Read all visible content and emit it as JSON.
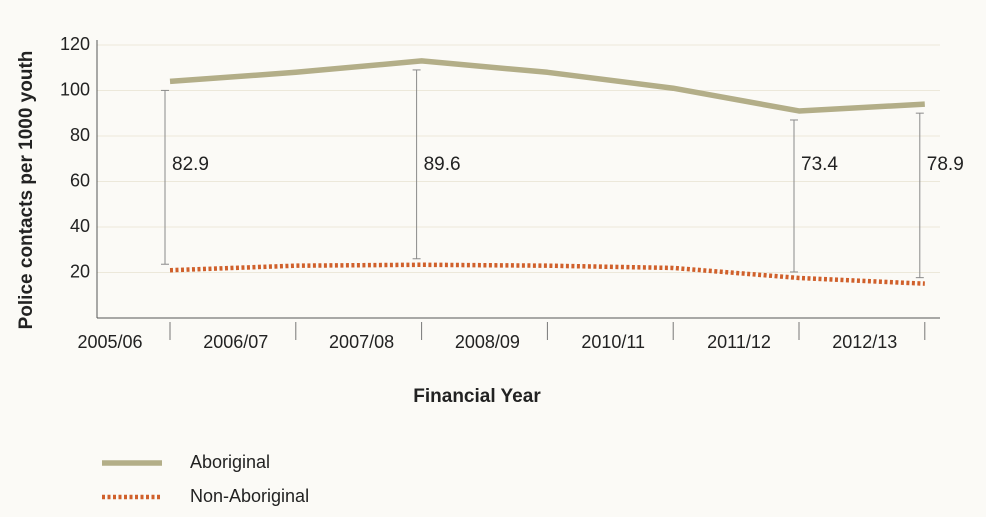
{
  "chart_data": {
    "type": "line",
    "x_label": "Financial Year",
    "y_label": "Police contacts per 1000 youth",
    "categories": [
      "2005/06",
      "2006/07",
      "2007/08",
      "2008/09",
      "2010/11",
      "2011/12",
      "2012/13"
    ],
    "series": [
      {
        "name": "Aboriginal",
        "color": "#b3ae88",
        "style": "solid",
        "values": [
          104,
          108,
          113,
          108,
          101,
          91,
          94
        ]
      },
      {
        "name": "Non-Aboriginal",
        "color": "#d0602b",
        "style": "dotted",
        "values": [
          21,
          23,
          23.4,
          23,
          22,
          17.6,
          15.1
        ]
      }
    ],
    "gap_annotations": {
      "values": [
        82.9,
        null,
        89.6,
        null,
        null,
        73.4,
        78.9
      ],
      "color": "#8a8a8a"
    },
    "ylim": [
      0,
      120
    ],
    "yticks": [
      20,
      40,
      60,
      80,
      100,
      120
    ],
    "grid": true,
    "legend": "bottom-left"
  }
}
